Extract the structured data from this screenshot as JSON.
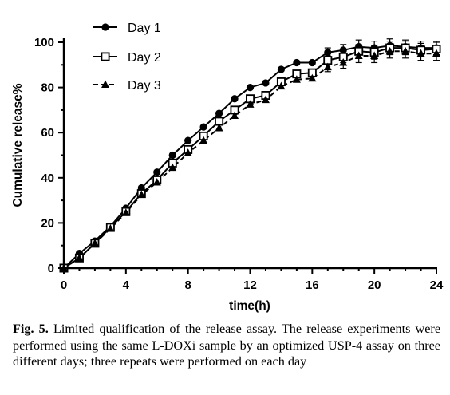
{
  "caption": {
    "label": "Fig. 5.",
    "text": "Limited qualification of the release assay. The release experiments were performed using the same L-DOXi sample by an optimized USP-4 assay on three different days; three repeats were performed on each day"
  },
  "chart_data": {
    "type": "line",
    "title": "",
    "xlabel": "time(h)",
    "ylabel": "Cumulative release%",
    "xlim": [
      0,
      24
    ],
    "ylim": [
      0,
      100
    ],
    "xticks": [
      0,
      4,
      8,
      12,
      16,
      20,
      24
    ],
    "yticks": [
      0,
      20,
      40,
      60,
      80,
      100
    ],
    "x": [
      0,
      1,
      2,
      3,
      4,
      5,
      6,
      7,
      8,
      9,
      10,
      11,
      12,
      13,
      14,
      15,
      16,
      17,
      18,
      19,
      20,
      21,
      22,
      23,
      24
    ],
    "legend_position": "top-left",
    "grid": false,
    "series": [
      {
        "name": "Day 1",
        "marker": "filled-circle",
        "line": "solid",
        "values": [
          0,
          6.5,
          12,
          18.5,
          26.5,
          35.5,
          42.5,
          50,
          56.5,
          62.5,
          68.5,
          75,
          80,
          82,
          88,
          91,
          91,
          95.5,
          96.5,
          98,
          97.5,
          98.5,
          98,
          97.5,
          97.5
        ]
      },
      {
        "name": "Day 2",
        "marker": "open-square",
        "line": "solid",
        "values": [
          0,
          4.5,
          11,
          18,
          25,
          33,
          39,
          46.5,
          52.5,
          58.5,
          65,
          70,
          75,
          76.5,
          82.5,
          86,
          86.5,
          92,
          93.5,
          96,
          95.5,
          97.5,
          97.5,
          96.5,
          97
        ]
      },
      {
        "name": "Day 3",
        "marker": "filled-triangle",
        "line": "dashed",
        "values": [
          0,
          4.5,
          11,
          17.5,
          24.5,
          32.5,
          38,
          44.5,
          51,
          56.5,
          62,
          67.5,
          72.5,
          74.5,
          80.5,
          83.5,
          84,
          89,
          91,
          94,
          94,
          96,
          96,
          95,
          95
        ]
      }
    ],
    "error_bars": {
      "x_from": 17,
      "plus_minus": [
        2,
        2.5,
        3,
        3,
        3,
        3,
        3,
        3
      ]
    }
  }
}
